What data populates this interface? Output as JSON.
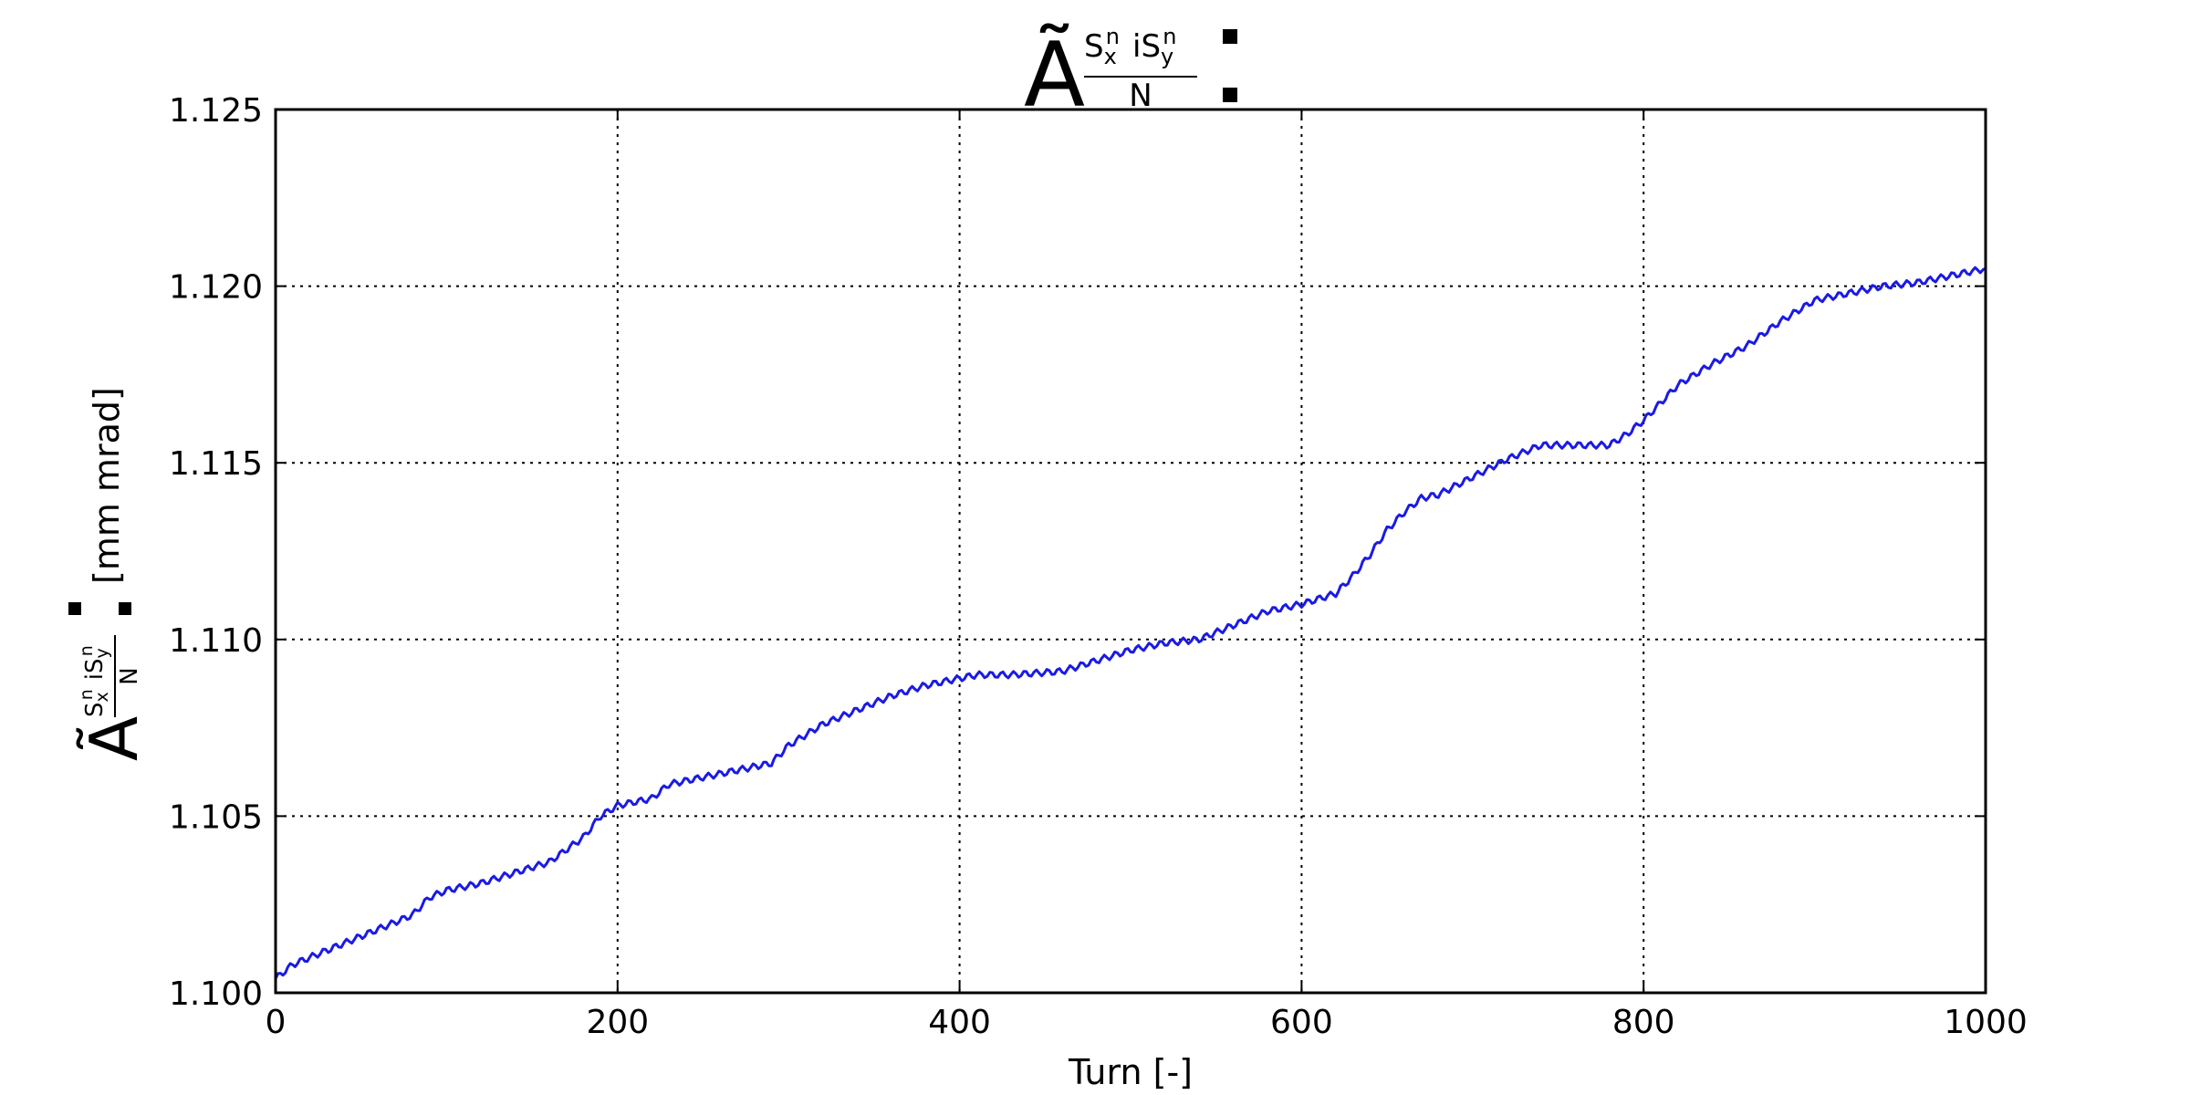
{
  "chart_data": {
    "type": "line",
    "title": {
      "symbol": "Ã",
      "numerator_s": "S",
      "numerator_x": "x",
      "numerator_n1": "n",
      "numerator_i": "iS",
      "numerator_y": "y",
      "numerator_n2": "n",
      "denominator": "N"
    },
    "xlabel": "Turn [-]",
    "ylabel": {
      "symbol": "Ã",
      "numerator_s": "S",
      "numerator_x": "x",
      "numerator_n1": "n",
      "numerator_i": "iS",
      "numerator_y": "y",
      "numerator_n2": "n",
      "denominator": "N",
      "unit": "[mm mrad]"
    },
    "xlim": [
      0,
      1000
    ],
    "ylim": [
      1.1,
      1.125
    ],
    "xticks": [
      0,
      200,
      400,
      600,
      800,
      1000
    ],
    "xtick_labels": [
      "0",
      "200",
      "400",
      "600",
      "800",
      "1000"
    ],
    "yticks": [
      1.1,
      1.105,
      1.11,
      1.115,
      1.12,
      1.125
    ],
    "ytick_labels": [
      "1.100",
      "1.105",
      "1.110",
      "1.115",
      "1.120",
      "1.125"
    ],
    "grid": true,
    "line_color": "#1a1ae6",
    "series": [
      {
        "x": [
          0,
          10,
          20,
          40,
          60,
          80,
          90,
          100,
          120,
          140,
          160,
          180,
          190,
          200,
          220,
          230,
          250,
          270,
          290,
          300,
          320,
          340,
          360,
          380,
          400,
          410,
          430,
          460,
          480,
          500,
          520,
          540,
          560,
          580,
          600,
          620,
          630,
          640,
          650,
          660,
          670,
          680,
          700,
          720,
          740,
          760,
          780,
          790,
          800,
          810,
          820,
          840,
          860,
          880,
          900,
          920,
          940,
          960,
          980,
          1000
        ],
        "y": [
          1.1004,
          1.1008,
          1.101,
          1.1014,
          1.1018,
          1.1022,
          1.1027,
          1.1029,
          1.1031,
          1.1034,
          1.1037,
          1.1044,
          1.105,
          1.1053,
          1.1055,
          1.1059,
          1.1061,
          1.1063,
          1.1065,
          1.107,
          1.1076,
          1.108,
          1.1084,
          1.1087,
          1.1089,
          1.109,
          1.109,
          1.1091,
          1.1094,
          1.1097,
          1.1099,
          1.11,
          1.1104,
          1.1108,
          1.111,
          1.1113,
          1.1118,
          1.1124,
          1.1131,
          1.1136,
          1.114,
          1.1141,
          1.1146,
          1.1151,
          1.1155,
          1.1155,
          1.1155,
          1.1158,
          1.1162,
          1.1167,
          1.1172,
          1.1178,
          1.1183,
          1.119,
          1.1196,
          1.1198,
          1.12,
          1.1201,
          1.1203,
          1.1205
        ]
      }
    ]
  }
}
